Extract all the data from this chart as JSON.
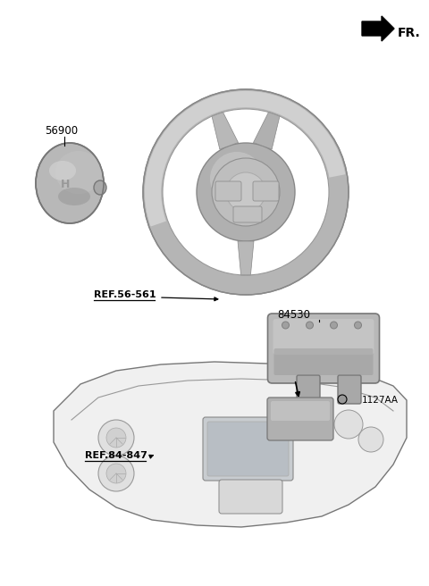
{
  "background_color": "#ffffff",
  "fr_label": "FR.",
  "fr_arrow_color": "#000000",
  "label_color": "#000000",
  "part_color_light": "#c8c8c8",
  "part_color_mid": "#b0b0b0",
  "part_color_dark": "#888888",
  "part_color_darker": "#666666",
  "outline_color": "#555555",
  "ref_color": "#000000",
  "label_56900": "56900",
  "label_84530": "84530",
  "label_ref1": "REF.56-561",
  "label_ref2": "REF.84-847",
  "label_bolt": "1127AA",
  "font_size_label": 8.5,
  "font_size_ref": 8,
  "font_size_fr": 10
}
